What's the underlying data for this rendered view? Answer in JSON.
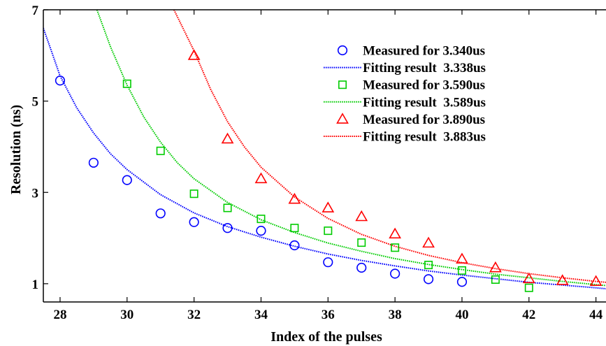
{
  "chart_data": {
    "type": "scatter",
    "xlabel": "Index of the pulses",
    "ylabel": "Resolution (ns)",
    "xlim": [
      27.5,
      44.3
    ],
    "ylim": [
      0.6,
      7
    ],
    "xticks": [
      28,
      30,
      32,
      34,
      36,
      38,
      40,
      42,
      44
    ],
    "yticks": [
      1,
      3,
      5,
      7
    ],
    "grid": false,
    "legend_position": "top-right",
    "series": [
      {
        "name": "Measured for 3.340us",
        "kind": "points",
        "marker": "circle",
        "color": "#0000ff",
        "x": [
          28,
          29,
          30,
          31,
          32,
          33,
          34,
          35,
          36,
          37,
          38,
          39,
          40
        ],
        "y": [
          5.45,
          3.65,
          3.27,
          2.54,
          2.35,
          2.22,
          2.16,
          1.84,
          1.47,
          1.35,
          1.22,
          1.1,
          1.04
        ]
      },
      {
        "name": "Fitting result  3.338us",
        "kind": "curve",
        "color": "#0000ff",
        "x": [
          27.5,
          28,
          28.5,
          29,
          29.5,
          30,
          31,
          32,
          33,
          34,
          35,
          36,
          37,
          38,
          39,
          40,
          41,
          42,
          43,
          44,
          44.3
        ],
        "y": [
          6.6,
          5.55,
          4.85,
          4.3,
          3.85,
          3.5,
          2.95,
          2.55,
          2.25,
          2.02,
          1.82,
          1.65,
          1.51,
          1.39,
          1.28,
          1.19,
          1.11,
          1.03,
          0.97,
          0.91,
          0.89
        ]
      },
      {
        "name": "Measured for 3.590us",
        "kind": "points",
        "marker": "square",
        "color": "#00cc00",
        "x": [
          30,
          31,
          32,
          33,
          34,
          35,
          36,
          37,
          38,
          39,
          40,
          41,
          42
        ],
        "y": [
          5.38,
          3.91,
          2.97,
          2.66,
          2.42,
          2.22,
          2.16,
          1.9,
          1.79,
          1.41,
          1.29,
          1.09,
          0.91
        ]
      },
      {
        "name": "Fitting result  3.589us",
        "kind": "curve",
        "color": "#00cc00",
        "x": [
          29.1,
          29.5,
          30,
          30.5,
          31,
          31.5,
          32,
          33,
          34,
          35,
          36,
          37,
          38,
          39,
          40,
          41,
          42,
          43,
          44,
          44.3
        ],
        "y": [
          7.0,
          6.2,
          5.35,
          4.65,
          4.1,
          3.65,
          3.3,
          2.78,
          2.4,
          2.12,
          1.89,
          1.71,
          1.55,
          1.42,
          1.31,
          1.21,
          1.13,
          1.05,
          0.98,
          0.96
        ]
      },
      {
        "name": "Measured for 3.890us",
        "kind": "points",
        "marker": "triangle",
        "color": "#ff0000",
        "x": [
          32,
          33,
          34,
          35,
          36,
          37,
          38,
          39,
          40,
          41,
          42,
          43,
          44
        ],
        "y": [
          6.0,
          4.17,
          3.3,
          2.85,
          2.66,
          2.47,
          2.09,
          1.89,
          1.54,
          1.35,
          1.11,
          1.07,
          1.05
        ]
      },
      {
        "name": "Fitting result  3.883us",
        "kind": "curve",
        "color": "#ff0000",
        "x": [
          31.4,
          31.7,
          32,
          32.5,
          33,
          33.5,
          34,
          35,
          36,
          37,
          38,
          39,
          40,
          41,
          42,
          43,
          44,
          44.3
        ],
        "y": [
          7.0,
          6.55,
          6.1,
          5.25,
          4.55,
          4.0,
          3.55,
          2.9,
          2.43,
          2.08,
          1.82,
          1.62,
          1.46,
          1.33,
          1.22,
          1.13,
          1.05,
          1.03
        ]
      }
    ]
  }
}
